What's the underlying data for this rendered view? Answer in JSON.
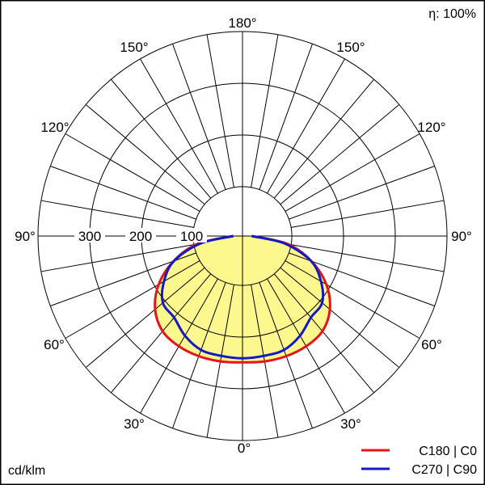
{
  "chart_data": {
    "type": "polar",
    "efficiency_label": "η: 100%",
    "unit_label": "cd/klm",
    "ring_values": [
      100,
      200,
      300
    ],
    "ring_labels": [
      "100",
      "200",
      "300"
    ],
    "angle_labels": {
      "top": "180°",
      "upper_left": "150°",
      "upper_right": "150°",
      "mid_upper_left": "120°",
      "mid_upper_right": "120°",
      "left": "90°",
      "right": "90°",
      "mid_lower_left": "60°",
      "mid_lower_right": "60°",
      "lower_left": "30°",
      "lower_right": "30°",
      "bottom": "0°"
    },
    "series": [
      {
        "name": "C180 | C0",
        "color": "#e8141b",
        "angles": [
          0,
          10,
          20,
          30,
          40,
          50,
          60,
          70,
          80,
          90
        ],
        "values": [
          248,
          250,
          251,
          250,
          244,
          224,
          190,
          144,
          90,
          18
        ]
      },
      {
        "name": "C270 | C90",
        "color": "#1419c8",
        "angles": [
          0,
          10,
          20,
          30,
          40,
          50,
          60,
          70,
          80,
          90
        ],
        "values": [
          240,
          239,
          238,
          226,
          209,
          204,
          178,
          143,
          84,
          18
        ]
      }
    ],
    "fill_color": "#fdf88d"
  }
}
